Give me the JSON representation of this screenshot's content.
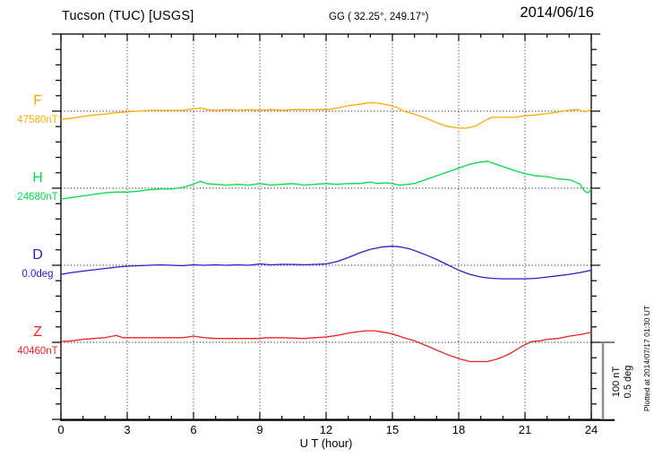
{
  "header": {
    "title": "Tucson (TUC)  [USGS]",
    "coords": "GG ( 32.25°, 249.17°)",
    "date": "2014/06/16"
  },
  "x_axis": {
    "label": "U T (hour)",
    "tick_labels": [
      "0",
      "3",
      "6",
      "9",
      "12",
      "15",
      "18",
      "21",
      "24"
    ],
    "range_hours": [
      0,
      24
    ],
    "major_step_hours": 3,
    "minor_step_hours": 1
  },
  "scale_bar": {
    "line1": "100 nT",
    "line2": "0.5 deg"
  },
  "footer_note": "Plotted at 2014/07/17 01:30 UT",
  "chart_data": {
    "type": "line",
    "title": "Tucson (TUC) [USGS] magnetogram 2014/06/16",
    "xlabel": "U T (hour)",
    "x_range": [
      0,
      24
    ],
    "grid": "dotted vertical gridlines every 3 h; dotted horizontal baseline under each trace",
    "legend_position": "left margin (component letter above baseline value)",
    "scale": {
      "nT_per_bar": 100,
      "deg_per_bar": 0.5
    },
    "series": [
      {
        "name": "F",
        "baseline_label": "47580nT",
        "baseline_value": 47580,
        "unit": "nT",
        "color": "#ffaa00",
        "offsets": [
          [
            0,
            -11
          ],
          [
            0.5,
            -9
          ],
          [
            1,
            -7
          ],
          [
            1.5,
            -5
          ],
          [
            2,
            -4
          ],
          [
            2.5,
            -2
          ],
          [
            3,
            -1
          ],
          [
            3.5,
            0
          ],
          [
            4,
            1
          ],
          [
            4.5,
            1
          ],
          [
            5,
            1
          ],
          [
            5.5,
            1
          ],
          [
            6,
            3
          ],
          [
            6.3,
            4
          ],
          [
            6.6,
            2
          ],
          [
            7,
            1
          ],
          [
            7.5,
            2
          ],
          [
            8,
            1
          ],
          [
            8.5,
            2
          ],
          [
            9,
            1
          ],
          [
            9.5,
            2
          ],
          [
            10,
            1
          ],
          [
            10.5,
            2
          ],
          [
            11,
            2
          ],
          [
            11.5,
            2
          ],
          [
            12,
            2
          ],
          [
            12.5,
            4
          ],
          [
            13,
            7
          ],
          [
            13.5,
            9
          ],
          [
            14,
            11
          ],
          [
            14.4,
            10
          ],
          [
            14.8,
            8
          ],
          [
            15.2,
            5
          ],
          [
            15.5,
            0
          ],
          [
            16,
            -4
          ],
          [
            16.5,
            -9
          ],
          [
            17,
            -15
          ],
          [
            17.5,
            -20
          ],
          [
            18,
            -22
          ],
          [
            18.4,
            -22
          ],
          [
            18.8,
            -19
          ],
          [
            19.2,
            -12
          ],
          [
            19.5,
            -8
          ],
          [
            20,
            -8
          ],
          [
            20.5,
            -8
          ],
          [
            21,
            -6
          ],
          [
            21.5,
            -5
          ],
          [
            22,
            -3
          ],
          [
            22.5,
            -1
          ],
          [
            23,
            1
          ],
          [
            23.4,
            2
          ],
          [
            23.7,
            -1
          ],
          [
            24,
            2
          ]
        ]
      },
      {
        "name": "H",
        "baseline_label": "24680nT",
        "baseline_value": 24680,
        "unit": "nT",
        "color": "#00dd44",
        "offsets": [
          [
            0,
            -14
          ],
          [
            0.5,
            -12
          ],
          [
            1,
            -10
          ],
          [
            1.5,
            -8
          ],
          [
            2,
            -6
          ],
          [
            2.5,
            -5
          ],
          [
            3,
            -5
          ],
          [
            3.5,
            -4
          ],
          [
            4,
            -2
          ],
          [
            4.5,
            -1
          ],
          [
            5,
            -1
          ],
          [
            5.5,
            1
          ],
          [
            6,
            5
          ],
          [
            6.3,
            9
          ],
          [
            6.6,
            6
          ],
          [
            7,
            5
          ],
          [
            7.5,
            4
          ],
          [
            8,
            5
          ],
          [
            8.5,
            4
          ],
          [
            9,
            6
          ],
          [
            9.5,
            4
          ],
          [
            10,
            5
          ],
          [
            10.5,
            6
          ],
          [
            11,
            4
          ],
          [
            11.5,
            5
          ],
          [
            12,
            6
          ],
          [
            12.5,
            5
          ],
          [
            13,
            6
          ],
          [
            13.5,
            6
          ],
          [
            14,
            8
          ],
          [
            14.3,
            6
          ],
          [
            14.7,
            7
          ],
          [
            15,
            6
          ],
          [
            15.3,
            4
          ],
          [
            15.7,
            5
          ],
          [
            16,
            6
          ],
          [
            16.5,
            11
          ],
          [
            17,
            16
          ],
          [
            17.5,
            21
          ],
          [
            18,
            26
          ],
          [
            18.5,
            31
          ],
          [
            19,
            34
          ],
          [
            19.3,
            35
          ],
          [
            19.6,
            32
          ],
          [
            20,
            28
          ],
          [
            20.5,
            23
          ],
          [
            21,
            19
          ],
          [
            21.5,
            16
          ],
          [
            22,
            15
          ],
          [
            22.5,
            12
          ],
          [
            23,
            11
          ],
          [
            23.2,
            9
          ],
          [
            23.5,
            5
          ],
          [
            23.7,
            -4
          ],
          [
            23.85,
            -6
          ],
          [
            24,
            -1
          ]
        ]
      },
      {
        "name": "D",
        "baseline_label": "0.0deg",
        "baseline_value": 0.0,
        "unit": "deg",
        "color": "#2222cc",
        "offsets": [
          [
            0,
            -0.059
          ],
          [
            0.5,
            -0.047
          ],
          [
            1,
            -0.038
          ],
          [
            1.5,
            -0.029
          ],
          [
            2,
            -0.021
          ],
          [
            2.5,
            -0.012
          ],
          [
            3,
            -0.006
          ],
          [
            3.5,
            -0.003
          ],
          [
            4,
            0
          ],
          [
            4.5,
            0.003
          ],
          [
            5,
            0
          ],
          [
            5.5,
            -0.003
          ],
          [
            6,
            0.003
          ],
          [
            6.5,
            0
          ],
          [
            7,
            0.003
          ],
          [
            7.5,
            0
          ],
          [
            8,
            0.003
          ],
          [
            8.5,
            0
          ],
          [
            9,
            0.009
          ],
          [
            9.5,
            0.003
          ],
          [
            10,
            0.006
          ],
          [
            10.5,
            0.006
          ],
          [
            11,
            0.003
          ],
          [
            11.5,
            0.006
          ],
          [
            12,
            0.009
          ],
          [
            12.5,
            0.024
          ],
          [
            13,
            0.05
          ],
          [
            13.5,
            0.079
          ],
          [
            14,
            0.103
          ],
          [
            14.5,
            0.118
          ],
          [
            15,
            0.124
          ],
          [
            15.4,
            0.118
          ],
          [
            15.8,
            0.106
          ],
          [
            16.2,
            0.085
          ],
          [
            16.6,
            0.062
          ],
          [
            17,
            0.038
          ],
          [
            17.5,
            0.003
          ],
          [
            18,
            -0.032
          ],
          [
            18.5,
            -0.059
          ],
          [
            19,
            -0.076
          ],
          [
            19.5,
            -0.085
          ],
          [
            20,
            -0.088
          ],
          [
            20.5,
            -0.088
          ],
          [
            21,
            -0.088
          ],
          [
            21.5,
            -0.085
          ],
          [
            22,
            -0.076
          ],
          [
            22.5,
            -0.068
          ],
          [
            23,
            -0.059
          ],
          [
            23.5,
            -0.047
          ],
          [
            24,
            -0.032
          ]
        ]
      },
      {
        "name": "Z",
        "baseline_label": "40460nT",
        "baseline_value": 40460,
        "unit": "nT",
        "color": "#ee2222",
        "offsets": [
          [
            0,
            1
          ],
          [
            0.5,
            2
          ],
          [
            1,
            4
          ],
          [
            1.5,
            5
          ],
          [
            2,
            6
          ],
          [
            2.5,
            9
          ],
          [
            2.8,
            6
          ],
          [
            3.5,
            6
          ],
          [
            4,
            6
          ],
          [
            4.5,
            6
          ],
          [
            5,
            6
          ],
          [
            5.5,
            6
          ],
          [
            6,
            8
          ],
          [
            6.5,
            6
          ],
          [
            7,
            5
          ],
          [
            8,
            5
          ],
          [
            9,
            5
          ],
          [
            9.3,
            6
          ],
          [
            10,
            6
          ],
          [
            11,
            5
          ],
          [
            11.5,
            6
          ],
          [
            12,
            7
          ],
          [
            12.5,
            9
          ],
          [
            13,
            12
          ],
          [
            13.5,
            14
          ],
          [
            13.8,
            15
          ],
          [
            14.2,
            15
          ],
          [
            14.6,
            13
          ],
          [
            15,
            11
          ],
          [
            15.5,
            6
          ],
          [
            16,
            2
          ],
          [
            16.5,
            -4
          ],
          [
            17,
            -10
          ],
          [
            17.5,
            -16
          ],
          [
            18,
            -21
          ],
          [
            18.5,
            -25
          ],
          [
            19,
            -25
          ],
          [
            19.3,
            -25
          ],
          [
            19.7,
            -22
          ],
          [
            20,
            -19
          ],
          [
            20.3,
            -15
          ],
          [
            20.7,
            -8
          ],
          [
            21,
            -3
          ],
          [
            21.3,
            1
          ],
          [
            21.7,
            2
          ],
          [
            22,
            4
          ],
          [
            22.5,
            5
          ],
          [
            23,
            8
          ],
          [
            23.5,
            10
          ],
          [
            24,
            13
          ]
        ]
      }
    ]
  }
}
